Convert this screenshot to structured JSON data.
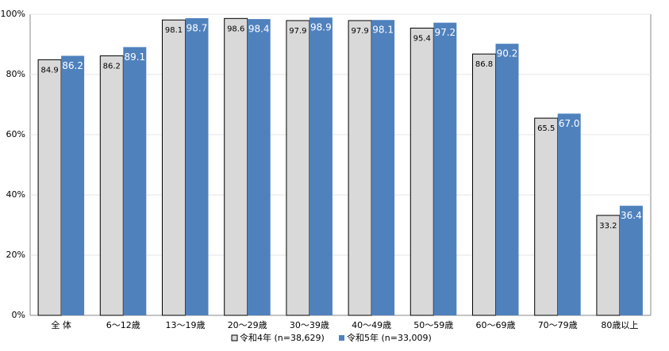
{
  "chart_data": {
    "type": "bar",
    "categories": [
      "全 体",
      "6～12歳",
      "13～19歳",
      "20～29歳",
      "30～39歳",
      "40～49歳",
      "50～59歳",
      "60～69歳",
      "70～79歳",
      "80歳以上"
    ],
    "series": [
      {
        "name": "令和4年 (n=38,629)",
        "color": "#d9d9d9",
        "values": [
          84.9,
          86.2,
          98.1,
          98.6,
          97.9,
          97.9,
          95.4,
          86.8,
          65.5,
          33.2
        ],
        "value_labels": [
          "84.9",
          "86.2",
          "98.1",
          "98.6",
          "97.9",
          "97.9",
          "95.4",
          "86.8",
          "65.5",
          "33.2"
        ]
      },
      {
        "name": "令和5年 (n=33,009)",
        "color": "#4f81bd",
        "values": [
          86.2,
          89.1,
          98.7,
          98.4,
          98.9,
          98.1,
          97.2,
          90.2,
          67.0,
          36.4
        ],
        "value_labels": [
          "86.2",
          "89.1",
          "98.7",
          "98.4",
          "98.9",
          "98.1",
          "97.2",
          "90.2",
          "67.0",
          "36.4"
        ]
      }
    ],
    "ylim": [
      0,
      100
    ],
    "yticks": [
      {
        "value": 0,
        "label": "0%"
      },
      {
        "value": 20,
        "label": "20%"
      },
      {
        "value": 40,
        "label": "40%"
      },
      {
        "value": 60,
        "label": "60%"
      },
      {
        "value": 80,
        "label": "80%"
      },
      {
        "value": 100,
        "label": "100%"
      }
    ],
    "grid": true
  }
}
